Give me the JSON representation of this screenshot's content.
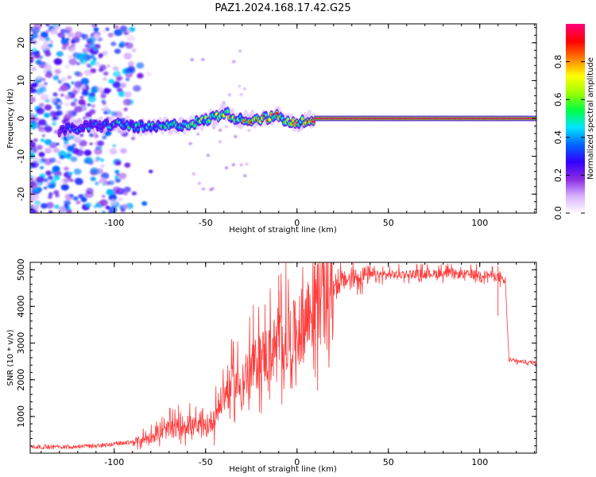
{
  "figure": {
    "title": "PAZ1.2024.168.17.42.G25"
  },
  "chart_data": [
    {
      "type": "heatmap",
      "title": "",
      "xlabel": "Height of straight line (km)",
      "ylabel": "Frequency (Hz)",
      "xlim": [
        -146,
        131
      ],
      "ylim": [
        -25,
        25
      ],
      "xticks": [
        -100,
        -50,
        0,
        50,
        100
      ],
      "yticks": [
        -20,
        -10,
        0,
        10,
        20
      ],
      "grid": false,
      "colorbar": {
        "label": "Normalized spectral amplitude",
        "range": [
          0.0,
          1.0
        ],
        "ticks": [
          0.0,
          0.2,
          0.4,
          0.6,
          0.8
        ],
        "colormap": "rainbow (violet-blue-cyan-green-yellow-red-magenta)",
        "colors": [
          "#ffffff",
          "#d9b3ff",
          "#8a2be2",
          "#3300ff",
          "#0066ff",
          "#00e5ff",
          "#00ff44",
          "#9cff00",
          "#ffff00",
          "#ff8000",
          "#ff0000",
          "#ff0077"
        ]
      },
      "signal_ridge": [
        {
          "x": -135,
          "y": -3.5,
          "amp": 0.35
        },
        {
          "x": -110,
          "y": -2.0,
          "amp": 0.4
        },
        {
          "x": -100,
          "y": -1.5,
          "amp": 0.45
        },
        {
          "x": -90,
          "y": -2.0,
          "amp": 0.5
        },
        {
          "x": -80,
          "y": -2.5,
          "amp": 0.55
        },
        {
          "x": -70,
          "y": -2.0,
          "amp": 0.55
        },
        {
          "x": -60,
          "y": -1.5,
          "amp": 0.55
        },
        {
          "x": -50,
          "y": -0.5,
          "amp": 0.6
        },
        {
          "x": -40,
          "y": 1.5,
          "amp": 0.7
        },
        {
          "x": -30,
          "y": -0.5,
          "amp": 0.75
        },
        {
          "x": -20,
          "y": 0.0,
          "amp": 0.85
        },
        {
          "x": -10,
          "y": 0.5,
          "amp": 0.8
        },
        {
          "x": -5,
          "y": -1.0,
          "amp": 0.85
        },
        {
          "x": 0,
          "y": -1.5,
          "amp": 0.8
        },
        {
          "x": 5,
          "y": -0.5,
          "amp": 0.85
        },
        {
          "x": 10,
          "y": 0.0,
          "amp": 0.95
        },
        {
          "x": 30,
          "y": 0.0,
          "amp": 0.95
        },
        {
          "x": 50,
          "y": 0.0,
          "amp": 0.95
        },
        {
          "x": 70,
          "y": 0.0,
          "amp": 0.95
        },
        {
          "x": 90,
          "y": 0.0,
          "amp": 0.95
        },
        {
          "x": 110,
          "y": 0.0,
          "amp": 0.95
        },
        {
          "x": 131,
          "y": 0.0,
          "amp": 0.95
        }
      ],
      "noise_region": {
        "x_from": -146,
        "x_to": -90,
        "y_range": [
          -25,
          25
        ],
        "amp_range": [
          0.05,
          0.45
        ]
      }
    },
    {
      "type": "line",
      "title": "",
      "xlabel": "Height of straight line (km)",
      "ylabel": "SNR (10 * v/v)",
      "xlim": [
        -146,
        131
      ],
      "ylim": [
        0,
        5200
      ],
      "xticks": [
        -100,
        -50,
        0,
        50,
        100
      ],
      "yticks": [
        1000,
        2000,
        3000,
        4000,
        5000
      ],
      "grid": false,
      "color": "#ff3b3b",
      "series": [
        {
          "x": [
            -146,
            -130,
            -110,
            -100,
            -90,
            -80,
            -70,
            -60,
            -50,
            -45,
            -40,
            -35,
            -30,
            -25,
            -20,
            -15,
            -10,
            -5,
            0,
            5,
            10,
            15,
            20,
            25,
            30,
            35,
            40,
            50,
            60,
            70,
            80,
            90,
            100,
            105,
            110,
            112,
            114,
            116,
            120,
            125,
            131
          ],
          "values": [
            150,
            150,
            170,
            230,
            280,
            420,
            620,
            750,
            600,
            1000,
            1500,
            1800,
            1800,
            2200,
            2500,
            2650,
            2900,
            3000,
            3150,
            3550,
            3950,
            4250,
            4450,
            4650,
            4750,
            4800,
            4830,
            4850,
            4870,
            4880,
            4880,
            4860,
            4860,
            4840,
            4800,
            4700,
            4650,
            2520,
            2500,
            2480,
            2450
          ]
        }
      ],
      "annotations": [
        {
          "x": -10,
          "value": 4850
        },
        {
          "x": 110,
          "value": 5100
        },
        {
          "x": 110,
          "value": 3750
        }
      ]
    }
  ]
}
